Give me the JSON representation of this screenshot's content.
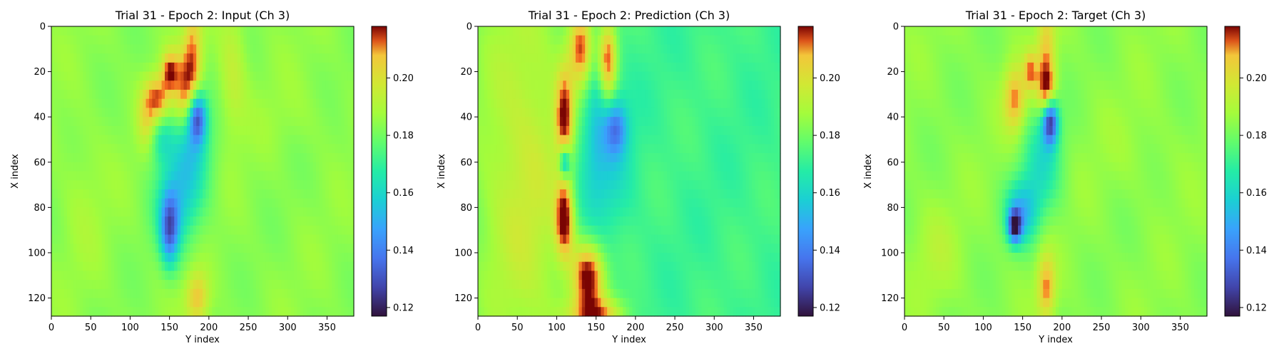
{
  "chart_data": [
    {
      "type": "heatmap",
      "title": "Trial 31 - Epoch 2: Input (Ch 3)",
      "xlabel": "Y index",
      "ylabel": "X index",
      "xlim": [
        0,
        384
      ],
      "ylim": [
        128,
        0
      ],
      "xticks": [
        0,
        50,
        100,
        150,
        200,
        250,
        300,
        350
      ],
      "yticks": [
        0,
        20,
        40,
        60,
        80,
        100,
        120
      ],
      "colorbar": {
        "range": [
          0.117,
          0.218
        ],
        "ticks": [
          0.12,
          0.14,
          0.16,
          0.18,
          0.2
        ],
        "colormap": "turbo"
      },
      "background_value": 0.184,
      "features": [
        {
          "x": 180,
          "y": 10,
          "sx": 8,
          "sy": 14,
          "v": 0.205
        },
        {
          "x": 170,
          "y": 28,
          "sx": 12,
          "sy": 12,
          "v": 0.212
        },
        {
          "x": 135,
          "y": 32,
          "sx": 10,
          "sy": 7,
          "v": 0.213
        },
        {
          "x": 150,
          "y": 20,
          "sx": 7,
          "sy": 6,
          "v": 0.21
        },
        {
          "x": 185,
          "y": 40,
          "sx": 8,
          "sy": 8,
          "v": 0.135
        },
        {
          "x": 175,
          "y": 55,
          "sx": 20,
          "sy": 15,
          "v": 0.162
        },
        {
          "x": 140,
          "y": 50,
          "sx": 10,
          "sy": 8,
          "v": 0.168
        },
        {
          "x": 150,
          "y": 90,
          "sx": 8,
          "sy": 11,
          "v": 0.145
        },
        {
          "x": 160,
          "y": 80,
          "sx": 20,
          "sy": 14,
          "v": 0.162
        },
        {
          "x": 185,
          "y": 120,
          "sx": 10,
          "sy": 8,
          "v": 0.207
        },
        {
          "x": 120,
          "y": 40,
          "sx": 8,
          "sy": 10,
          "v": 0.198
        },
        {
          "x": 230,
          "y": 20,
          "sx": 12,
          "sy": 20,
          "v": 0.195
        },
        {
          "x": 40,
          "y": 75,
          "sx": 20,
          "sy": 25,
          "v": 0.188
        },
        {
          "x": 310,
          "y": 40,
          "sx": 40,
          "sy": 10,
          "v": 0.186
        }
      ]
    },
    {
      "type": "heatmap",
      "title": "Trial 31 - Epoch 2: Prediction (Ch 3)",
      "xlabel": "Y index",
      "ylabel": "X index",
      "xlim": [
        0,
        384
      ],
      "ylim": [
        128,
        0
      ],
      "xticks": [
        0,
        50,
        100,
        150,
        200,
        250,
        300,
        350
      ],
      "yticks": [
        0,
        20,
        40,
        60,
        80,
        100,
        120
      ],
      "colorbar": {
        "range": [
          0.117,
          0.218
        ],
        "ticks": [
          0.12,
          0.14,
          0.16,
          0.18,
          0.2
        ],
        "colormap": "turbo"
      },
      "background_value": 0.172,
      "features": [
        {
          "x": 60,
          "y": 64,
          "sx": 55,
          "sy": 80,
          "v": 0.196
        },
        {
          "x": 130,
          "y": 10,
          "sx": 10,
          "sy": 12,
          "v": 0.208
        },
        {
          "x": 165,
          "y": 15,
          "sx": 8,
          "sy": 12,
          "v": 0.21
        },
        {
          "x": 110,
          "y": 40,
          "sx": 8,
          "sy": 15,
          "v": 0.208
        },
        {
          "x": 110,
          "y": 85,
          "sx": 8,
          "sy": 12,
          "v": 0.212
        },
        {
          "x": 140,
          "y": 110,
          "sx": 14,
          "sy": 10,
          "v": 0.215
        },
        {
          "x": 150,
          "y": 60,
          "sx": 28,
          "sy": 25,
          "v": 0.153
        },
        {
          "x": 175,
          "y": 45,
          "sx": 10,
          "sy": 8,
          "v": 0.145
        },
        {
          "x": 110,
          "y": 60,
          "sx": 5,
          "sy": 5,
          "v": 0.135
        },
        {
          "x": 150,
          "y": 35,
          "sx": 8,
          "sy": 20,
          "v": 0.165
        },
        {
          "x": 150,
          "y": 128,
          "sx": 25,
          "sy": 6,
          "v": 0.205
        }
      ]
    },
    {
      "type": "heatmap",
      "title": "Trial 31 - Epoch 2: Target (Ch 3)",
      "xlabel": "Y index",
      "ylabel": "X index",
      "xlim": [
        0,
        384
      ],
      "ylim": [
        128,
        0
      ],
      "xticks": [
        0,
        50,
        100,
        150,
        200,
        250,
        300,
        350
      ],
      "yticks": [
        0,
        20,
        40,
        60,
        80,
        100,
        120
      ],
      "colorbar": {
        "range": [
          0.117,
          0.218
        ],
        "ticks": [
          0.12,
          0.14,
          0.16,
          0.18,
          0.2
        ],
        "colormap": "turbo"
      },
      "background_value": 0.184,
      "features": [
        {
          "x": 180,
          "y": 10,
          "sx": 8,
          "sy": 14,
          "v": 0.205
        },
        {
          "x": 180,
          "y": 28,
          "sx": 8,
          "sy": 8,
          "v": 0.213
        },
        {
          "x": 140,
          "y": 32,
          "sx": 10,
          "sy": 10,
          "v": 0.21
        },
        {
          "x": 160,
          "y": 20,
          "sx": 6,
          "sy": 6,
          "v": 0.208
        },
        {
          "x": 185,
          "y": 42,
          "sx": 7,
          "sy": 7,
          "v": 0.128
        },
        {
          "x": 175,
          "y": 60,
          "sx": 18,
          "sy": 15,
          "v": 0.165
        },
        {
          "x": 140,
          "y": 88,
          "sx": 6,
          "sy": 5,
          "v": 0.13
        },
        {
          "x": 150,
          "y": 82,
          "sx": 15,
          "sy": 10,
          "v": 0.155
        },
        {
          "x": 180,
          "y": 115,
          "sx": 8,
          "sy": 10,
          "v": 0.21
        },
        {
          "x": 40,
          "y": 100,
          "sx": 20,
          "sy": 15,
          "v": 0.19
        },
        {
          "x": 300,
          "y": 55,
          "sx": 50,
          "sy": 15,
          "v": 0.186
        }
      ]
    }
  ]
}
